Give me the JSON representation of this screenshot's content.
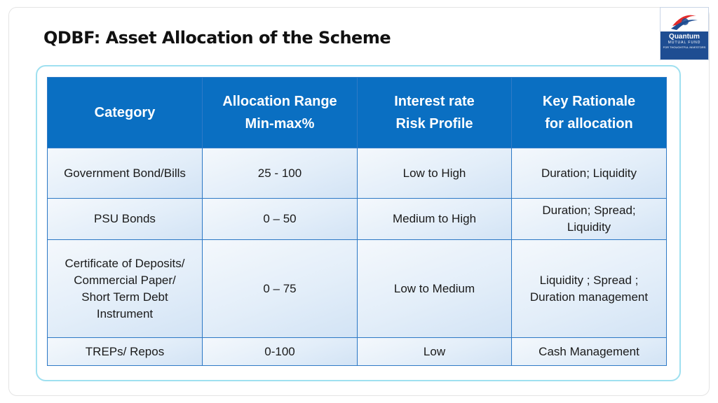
{
  "slide": {
    "title": "QDBF: Asset Allocation of the Scheme"
  },
  "logo": {
    "name": "Quantum",
    "sub": "MUTUAL FUND",
    "tagline": "FOR THOUGHTFUL INVESTORS",
    "colors": {
      "primary": "#1e4d92",
      "accent": "#e22b2b"
    }
  },
  "table": {
    "headers": [
      "Category",
      "Allocation Range\nMin-max%",
      "Interest rate\nRisk Profile",
      "Key Rationale\nfor allocation"
    ],
    "rows": [
      [
        "Government Bond/Bills",
        "25 - 100",
        "Low to High",
        "Duration; Liquidity"
      ],
      [
        "PSU Bonds",
        "0 – 50",
        "Medium  to High",
        "Duration; Spread;\nLiquidity"
      ],
      [
        "Certificate of Deposits/\nCommercial Paper/\nShort Term Debt\nInstrument",
        "0 – 75",
        "Low to Medium",
        "Liquidity ; Spread ;\nDuration management"
      ],
      [
        "TREPs/ Repos",
        "0-100",
        "Low",
        "Cash Management"
      ]
    ]
  },
  "colors": {
    "header_bg": "#0a6fc2",
    "panel_border": "#9fe0f0",
    "cell_border": "#2f7ac6"
  }
}
